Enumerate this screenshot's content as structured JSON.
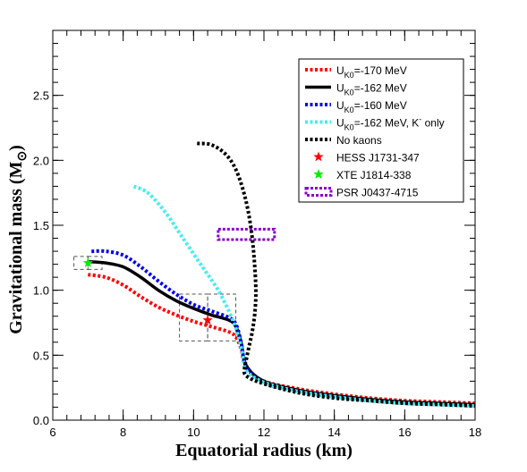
{
  "chart_data": {
    "type": "line",
    "title": "",
    "xlabel": "Equatorial radius (km)",
    "ylabel": "Gravitational mass (M⊙)",
    "ylabel_main": "Gravitational mass (M",
    "ylabel_sub": "⊙",
    "ylabel_close": ")",
    "xlim": [
      6,
      18
    ],
    "ylim": [
      0.0,
      3.0
    ],
    "x_ticks": [
      6,
      8,
      10,
      12,
      14,
      16,
      18
    ],
    "x_tick_labels": [
      "6",
      "8",
      "10",
      "12",
      "14",
      "16",
      "18"
    ],
    "y_ticks": [
      0.0,
      0.5,
      1.0,
      1.5,
      2.0,
      2.5
    ],
    "y_tick_labels": [
      "0.0",
      "0.5",
      "1.0",
      "1.5",
      "2.0",
      "2.5"
    ],
    "grid": false,
    "legend_position": "top-right",
    "series": [
      {
        "name": "U_K0=-170 MeV",
        "legend_main": "U",
        "legend_sub": "K0",
        "legend_rest": "=-170 MeV",
        "color": "#ff0000",
        "style": "dotted",
        "x": [
          7.0,
          7.5,
          8.0,
          8.5,
          9.0,
          9.5,
          10.0,
          10.5,
          11.0,
          11.2,
          11.35,
          11.5,
          12.0,
          13.0,
          14.0,
          15.0,
          16.0,
          17.0,
          18.0
        ],
        "y": [
          1.12,
          1.1,
          1.04,
          0.95,
          0.87,
          0.81,
          0.76,
          0.72,
          0.68,
          0.64,
          0.55,
          0.4,
          0.3,
          0.24,
          0.2,
          0.17,
          0.15,
          0.14,
          0.13
        ]
      },
      {
        "name": "U_K0=-162 MeV",
        "legend_main": "U",
        "legend_sub": "K0",
        "legend_rest": "=-162 MeV",
        "color": "#000000",
        "style": "solid",
        "x": [
          7.0,
          7.5,
          8.0,
          8.5,
          9.0,
          9.5,
          10.0,
          10.5,
          11.0,
          11.2,
          11.35,
          11.5,
          12.0,
          13.0,
          14.0,
          15.0,
          16.0,
          17.0,
          18.0
        ],
        "y": [
          1.22,
          1.21,
          1.18,
          1.1,
          1.0,
          0.92,
          0.86,
          0.81,
          0.77,
          0.72,
          0.6,
          0.42,
          0.3,
          0.23,
          0.19,
          0.16,
          0.14,
          0.13,
          0.12
        ]
      },
      {
        "name": "U_K0=-160 MeV",
        "legend_main": "U",
        "legend_sub": "K0",
        "legend_rest": "=-160 MeV",
        "color": "#0000ee",
        "style": "dotted",
        "x": [
          7.1,
          7.5,
          8.0,
          8.5,
          9.0,
          9.5,
          10.0,
          10.5,
          11.0,
          11.2,
          11.35,
          11.5,
          12.0,
          13.0,
          14.0,
          15.0,
          16.0,
          17.0,
          18.0
        ],
        "y": [
          1.3,
          1.3,
          1.27,
          1.18,
          1.07,
          0.97,
          0.89,
          0.84,
          0.79,
          0.74,
          0.6,
          0.41,
          0.29,
          0.22,
          0.18,
          0.15,
          0.13,
          0.12,
          0.11
        ]
      },
      {
        "name": "U_K0=-162 MeV, K⁻ only",
        "legend_main": "U",
        "legend_sub": "K0",
        "legend_rest": "=-162 MeV, K",
        "legend_sup": "-",
        "legend_tail": " only",
        "color": "#44eeee",
        "style": "dotted",
        "x": [
          8.3,
          8.7,
          9.2,
          9.7,
          10.2,
          10.7,
          11.1,
          11.3,
          11.4,
          11.5,
          12.0,
          13.0,
          14.0,
          15.0,
          16.0,
          17.0,
          18.0
        ],
        "y": [
          1.8,
          1.75,
          1.6,
          1.4,
          1.2,
          1.0,
          0.78,
          0.62,
          0.5,
          0.38,
          0.29,
          0.22,
          0.18,
          0.15,
          0.13,
          0.12,
          0.11
        ]
      },
      {
        "name": "No kaons",
        "legend_main": "No kaons",
        "legend_sub": "",
        "legend_rest": "",
        "color": "#000000",
        "style": "dotted",
        "x": [
          10.1,
          10.5,
          10.9,
          11.2,
          11.45,
          11.62,
          11.72,
          11.77,
          11.74,
          11.66,
          11.57,
          11.5,
          11.45,
          11.5,
          12.0,
          13.0,
          14.0,
          15.0,
          16.0,
          17.0,
          18.0
        ],
        "y": [
          2.13,
          2.12,
          2.05,
          1.93,
          1.73,
          1.5,
          1.25,
          1.0,
          0.82,
          0.67,
          0.56,
          0.47,
          0.4,
          0.34,
          0.28,
          0.21,
          0.17,
          0.15,
          0.13,
          0.12,
          0.11
        ]
      }
    ],
    "observations": [
      {
        "name": "HESS J1731-347",
        "type": "star-with-box",
        "color": "#ff0000",
        "x": 10.4,
        "y": 0.77,
        "box_inner": {
          "x": [
            9.6,
            10.4
          ],
          "y": [
            0.61,
            0.97
          ]
        },
        "box_outer": {
          "x": [
            10.4,
            11.2
          ],
          "y": [
            0.61,
            0.97
          ]
        }
      },
      {
        "name": "XTE J1814-338",
        "type": "star-with-box",
        "color": "#00ee00",
        "x": 7.0,
        "y": 1.21,
        "box_inner": {
          "x": [
            6.6,
            7.0
          ],
          "y": [
            1.16,
            1.26
          ]
        },
        "box_outer": {
          "x": [
            7.0,
            7.4
          ],
          "y": [
            1.16,
            1.26
          ]
        }
      },
      {
        "name": "PSR J0437-4715",
        "type": "box",
        "color": "#8800cc",
        "box": {
          "x": [
            10.7,
            12.3
          ],
          "y": [
            1.39,
            1.47
          ]
        }
      }
    ]
  }
}
